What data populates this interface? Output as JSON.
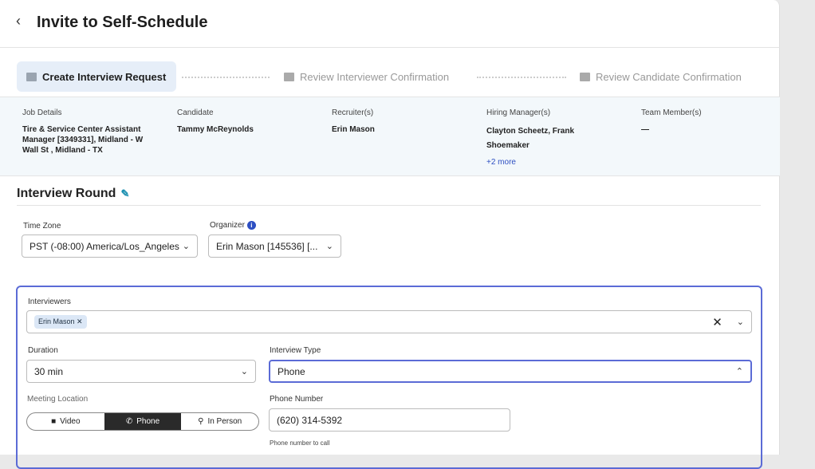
{
  "header": {
    "title": "Invite to Self-Schedule"
  },
  "steps": [
    {
      "label": "Create Interview Request"
    },
    {
      "label": "Review Interviewer Confirmation"
    },
    {
      "label": "Review Candidate Confirmation"
    }
  ],
  "details": [
    {
      "label": "Job Details",
      "value": "Tire & Service Center Assistant Manager [3349331], Midland - W Wall St , Midland - TX"
    },
    {
      "label": "Candidate",
      "value": "Tammy McReynolds"
    },
    {
      "label": "Recruiter(s)",
      "value": "Erin Mason"
    },
    {
      "label": "Hiring Manager(s)",
      "value": "Clayton Scheetz, Frank Shoemaker",
      "more": "+2 more"
    },
    {
      "label": "Team Member(s)",
      "value": "—"
    }
  ],
  "round": {
    "title": "Interview Round",
    "time_zone": {
      "label": "Time Zone",
      "value": "PST (-08:00) America/Los_Angeles"
    },
    "organizer": {
      "label": "Organizer",
      "value": "Erin Mason [145536] [..."
    },
    "interviewers": {
      "label": "Interviewers",
      "chips": [
        "Erin Mason"
      ]
    },
    "duration": {
      "label": "Duration",
      "value": "30 min"
    },
    "interview_type": {
      "label": "Interview Type",
      "value": "Phone"
    },
    "meeting_location": {
      "label": "Meeting Location",
      "options": [
        "Video",
        "Phone",
        "In Person"
      ],
      "selected": "Phone"
    },
    "phone": {
      "label": "Phone Number",
      "value": "(620) 314-5392",
      "hint": "Phone number to call"
    }
  },
  "colors": {
    "accent": "#5b6bd6",
    "link": "#2d4fc2",
    "band": "#f3f8fb"
  }
}
